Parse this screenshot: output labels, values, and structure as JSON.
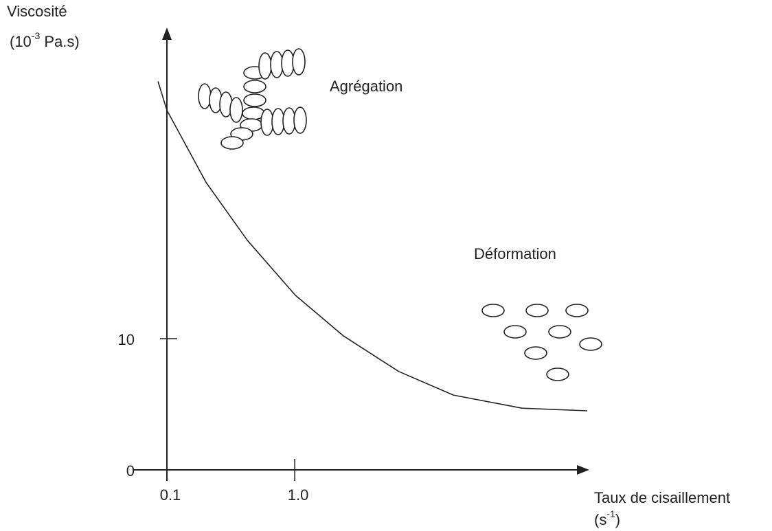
{
  "chart_data": {
    "type": "line",
    "y_label": {
      "line1": "Viscosité",
      "base": "(10",
      "sup": "-3",
      "rest": " Pa.s)"
    },
    "x_label": {
      "line1": "Taux de cisaillement",
      "base": "(s",
      "sup": "-1",
      "rest": ")"
    },
    "annotations": [
      "Agrégation",
      "Déformation"
    ],
    "x": [
      0.037,
      0.1,
      0.376,
      0.666,
      1.005,
      1.344,
      1.732,
      2.117,
      2.6,
      3.06
    ],
    "series": [
      {
        "color": "#222222",
        "values": [
          29.6,
          27.4,
          21.9,
          17.5,
          13.3,
          10.2,
          7.5,
          5.7,
          4.7,
          4.5
        ]
      }
    ],
    "xlim": [
      0.1,
      3.06
    ],
    "ylim": [
      0,
      33.5
    ],
    "xticks": [
      0.1,
      {
        "value": 1,
        "label": "1.0"
      }
    ],
    "yticks": [
      0,
      10
    ]
  }
}
